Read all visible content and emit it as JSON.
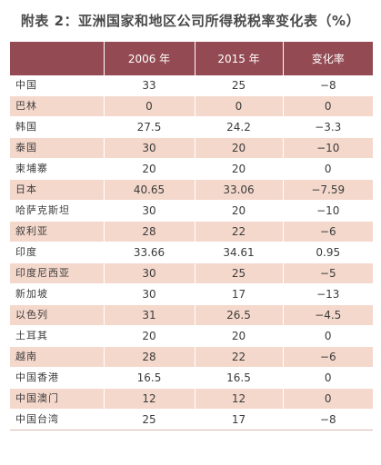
{
  "title": "附表 2：亚洲国家和地区公司所得税税率变化表（%）",
  "columns": [
    "",
    "2006 年",
    "2015 年",
    "变化率"
  ],
  "rows": [
    {
      "region": "中国",
      "y2006": "33",
      "y2015": "25",
      "change": "−8"
    },
    {
      "region": "巴林",
      "y2006": "0",
      "y2015": "0",
      "change": "0"
    },
    {
      "region": "韩国",
      "y2006": "27.5",
      "y2015": "24.2",
      "change": "−3.3"
    },
    {
      "region": "泰国",
      "y2006": "30",
      "y2015": "20",
      "change": "−10"
    },
    {
      "region": "柬埔寨",
      "y2006": "20",
      "y2015": "20",
      "change": "0"
    },
    {
      "region": "日本",
      "y2006": "40.65",
      "y2015": "33.06",
      "change": "−7.59"
    },
    {
      "region": "哈萨克斯坦",
      "y2006": "30",
      "y2015": "20",
      "change": "−10"
    },
    {
      "region": "叙利亚",
      "y2006": "28",
      "y2015": "22",
      "change": "−6"
    },
    {
      "region": "印度",
      "y2006": "33.66",
      "y2015": "34.61",
      "change": "0.95"
    },
    {
      "region": "印度尼西亚",
      "y2006": "30",
      "y2015": "25",
      "change": "−5"
    },
    {
      "region": "新加坡",
      "y2006": "30",
      "y2015": "17",
      "change": "−13"
    },
    {
      "region": "以色列",
      "y2006": "31",
      "y2015": "26.5",
      "change": "−4.5"
    },
    {
      "region": "土耳其",
      "y2006": "20",
      "y2015": "20",
      "change": "0"
    },
    {
      "region": "越南",
      "y2006": "28",
      "y2015": "22",
      "change": "−6"
    },
    {
      "region": "中国香港",
      "y2006": "16.5",
      "y2015": "16.5",
      "change": "0"
    },
    {
      "region": "中国澳门",
      "y2006": "12",
      "y2015": "12",
      "change": "0"
    },
    {
      "region": "中国台湾",
      "y2006": "25",
      "y2015": "17",
      "change": "−8"
    }
  ],
  "colors": {
    "header_bg": "#934a52",
    "stripe_bg": "#f5d8cc"
  }
}
